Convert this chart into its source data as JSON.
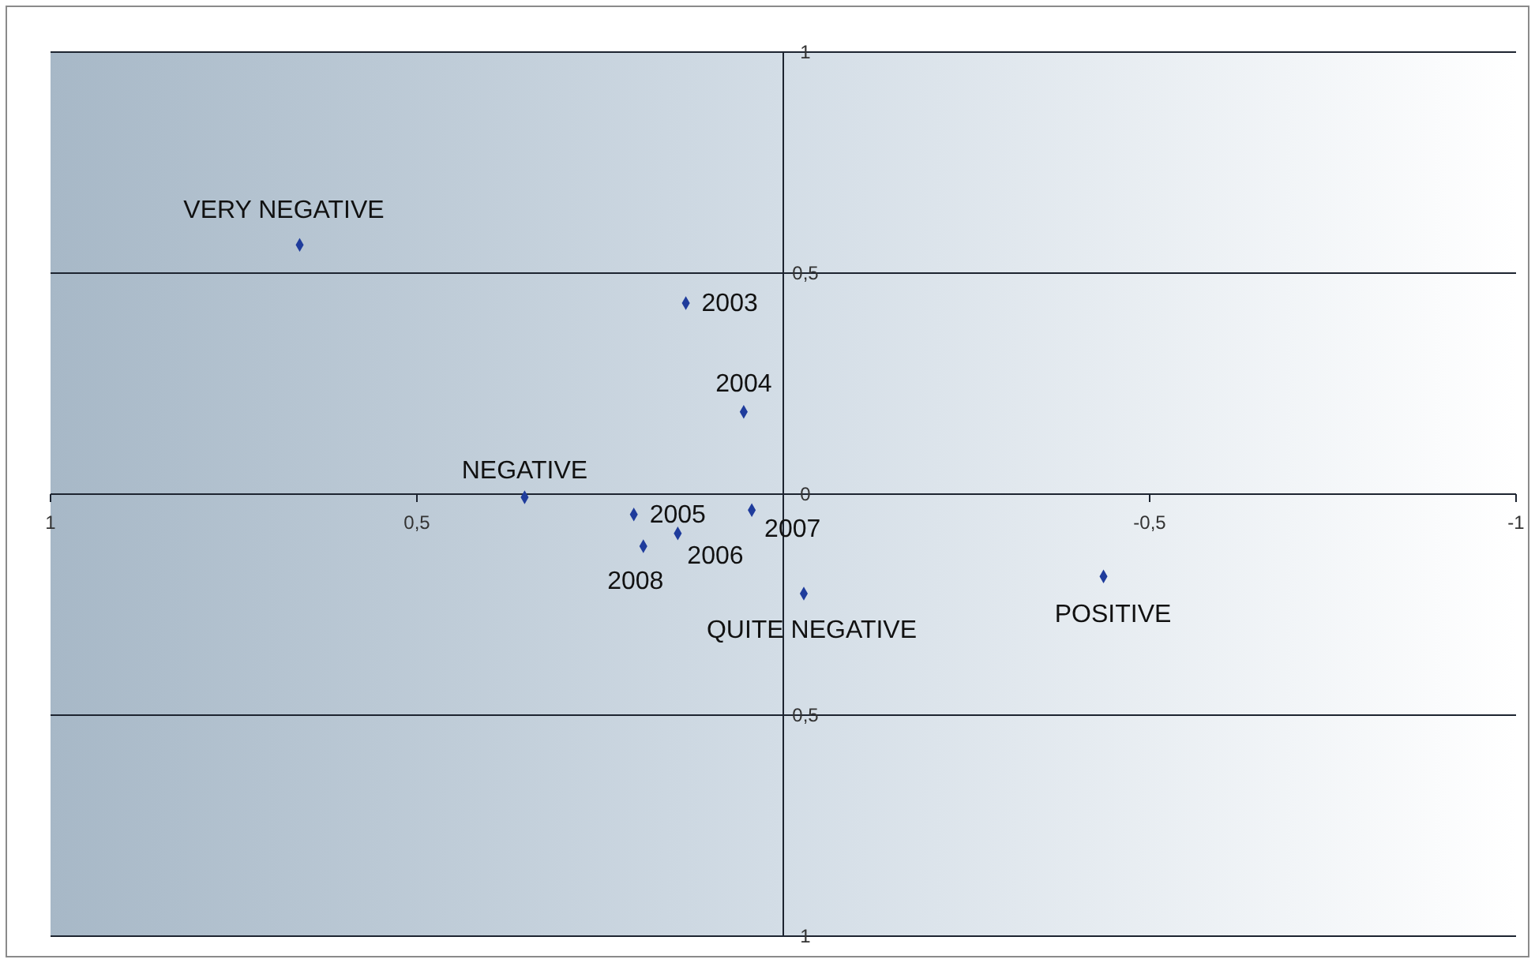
{
  "chart_data": {
    "type": "scatter",
    "xlim": [
      1,
      -1
    ],
    "ylim": [
      -1,
      1
    ],
    "xticks": [
      1,
      {
        "value": 0.5,
        "label": "0,5"
      },
      {
        "value": -0.5,
        "label": "-0,5"
      },
      -1
    ],
    "yticks": [
      {
        "value": -1,
        "label": "1"
      },
      {
        "value": -0.5,
        "label": "0,5"
      },
      0,
      {
        "value": 0.5,
        "label": "0,5"
      },
      1
    ],
    "grid": "y",
    "marker": "diamond",
    "series": [
      {
        "color": "#1f3c9c",
        "x": [
          0.66,
          0.133,
          0.054,
          0.353,
          0.204,
          0.043,
          0.144,
          0.191,
          -0.028,
          -0.437
        ],
        "values": [
          0.564,
          0.432,
          0.186,
          -0.007,
          -0.046,
          -0.036,
          -0.089,
          -0.118,
          -0.225,
          -0.186
        ]
      }
    ],
    "annotations": [
      {
        "text": "VERY NEGATIVE",
        "x": 0.66,
        "y": 0.564
      },
      {
        "text": "2003",
        "x": 0.133,
        "y": 0.432
      },
      {
        "text": "2004",
        "x": 0.054,
        "y": 0.186
      },
      {
        "text": "NEGATIVE",
        "x": 0.353,
        "y": -0.007
      },
      {
        "text": "2005",
        "x": 0.204,
        "y": -0.046
      },
      {
        "text": "2007",
        "x": 0.043,
        "y": -0.036
      },
      {
        "text": "2006",
        "x": 0.144,
        "y": -0.089
      },
      {
        "text": "2008",
        "x": 0.191,
        "y": -0.118
      },
      {
        "text": "QUITE NEGATIVE",
        "x": -0.028,
        "y": -0.225
      },
      {
        "text": "POSITIVE",
        "x": -0.437,
        "y": -0.186
      }
    ]
  }
}
